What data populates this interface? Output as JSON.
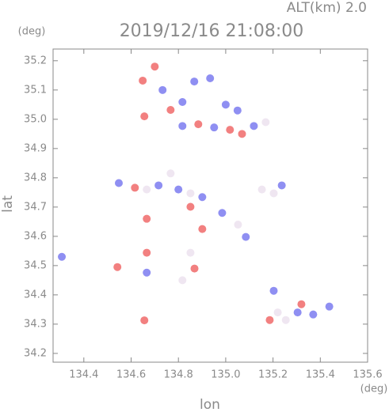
{
  "chart_data": {
    "type": "scatter",
    "title": "2019/12/16 21:08:00",
    "subtitle": "ALT(km) 2.0",
    "y_unit": "(deg)",
    "x_unit": "(deg)",
    "xlabel": "lon",
    "ylabel": "lat",
    "xlim": [
      134.27,
      135.6
    ],
    "ylim": [
      34.17,
      35.24
    ],
    "xticks": [
      134.4,
      134.6,
      134.8,
      {
        "value": 135,
        "label": "135.0"
      },
      135.2,
      135.4,
      135.6
    ],
    "yticks": [
      34.2,
      34.3,
      34.4,
      34.5,
      34.6,
      34.7,
      34.8,
      34.9,
      {
        "value": 35,
        "label": "35.0"
      },
      35.1,
      35.2
    ],
    "series": [
      {
        "color": "#f06a6a",
        "x": [
          134.649,
          134.7,
          134.767,
          134.656,
          134.884,
          135.018,
          135.069,
          134.616,
          134.851,
          134.901,
          134.868,
          134.666,
          134.666,
          134.542,
          134.656,
          135.186,
          135.32
        ],
        "y": [
          35.132,
          35.18,
          35.032,
          35.01,
          34.983,
          34.964,
          34.95,
          34.766,
          34.701,
          34.625,
          34.49,
          34.66,
          34.544,
          34.495,
          34.313,
          34.314,
          34.368
        ]
      },
      {
        "color": "#7b7bf0",
        "x": [
          134.733,
          134.867,
          134.934,
          134.817,
          135.0,
          135.05,
          134.817,
          134.951,
          135.119,
          134.548,
          134.716,
          134.8,
          134.901,
          135.237,
          134.985,
          135.085,
          134.666,
          134.307,
          135.304,
          135.37,
          135.438,
          135.203
        ],
        "y": [
          35.1,
          35.129,
          35.14,
          35.059,
          35.05,
          35.03,
          34.977,
          34.972,
          34.977,
          34.782,
          34.774,
          34.76,
          34.734,
          34.774,
          34.68,
          34.598,
          34.476,
          34.53,
          34.34,
          34.333,
          34.36,
          34.414
        ]
      },
      {
        "color": "#ece2ee",
        "x": [
          135.169,
          134.666,
          134.767,
          134.851,
          135.153,
          135.203,
          135.052,
          134.851,
          134.817,
          135.22,
          135.254
        ],
        "y": [
          34.99,
          34.76,
          34.815,
          34.747,
          34.76,
          34.747,
          34.64,
          34.544,
          34.45,
          34.34,
          34.314
        ]
      }
    ]
  }
}
